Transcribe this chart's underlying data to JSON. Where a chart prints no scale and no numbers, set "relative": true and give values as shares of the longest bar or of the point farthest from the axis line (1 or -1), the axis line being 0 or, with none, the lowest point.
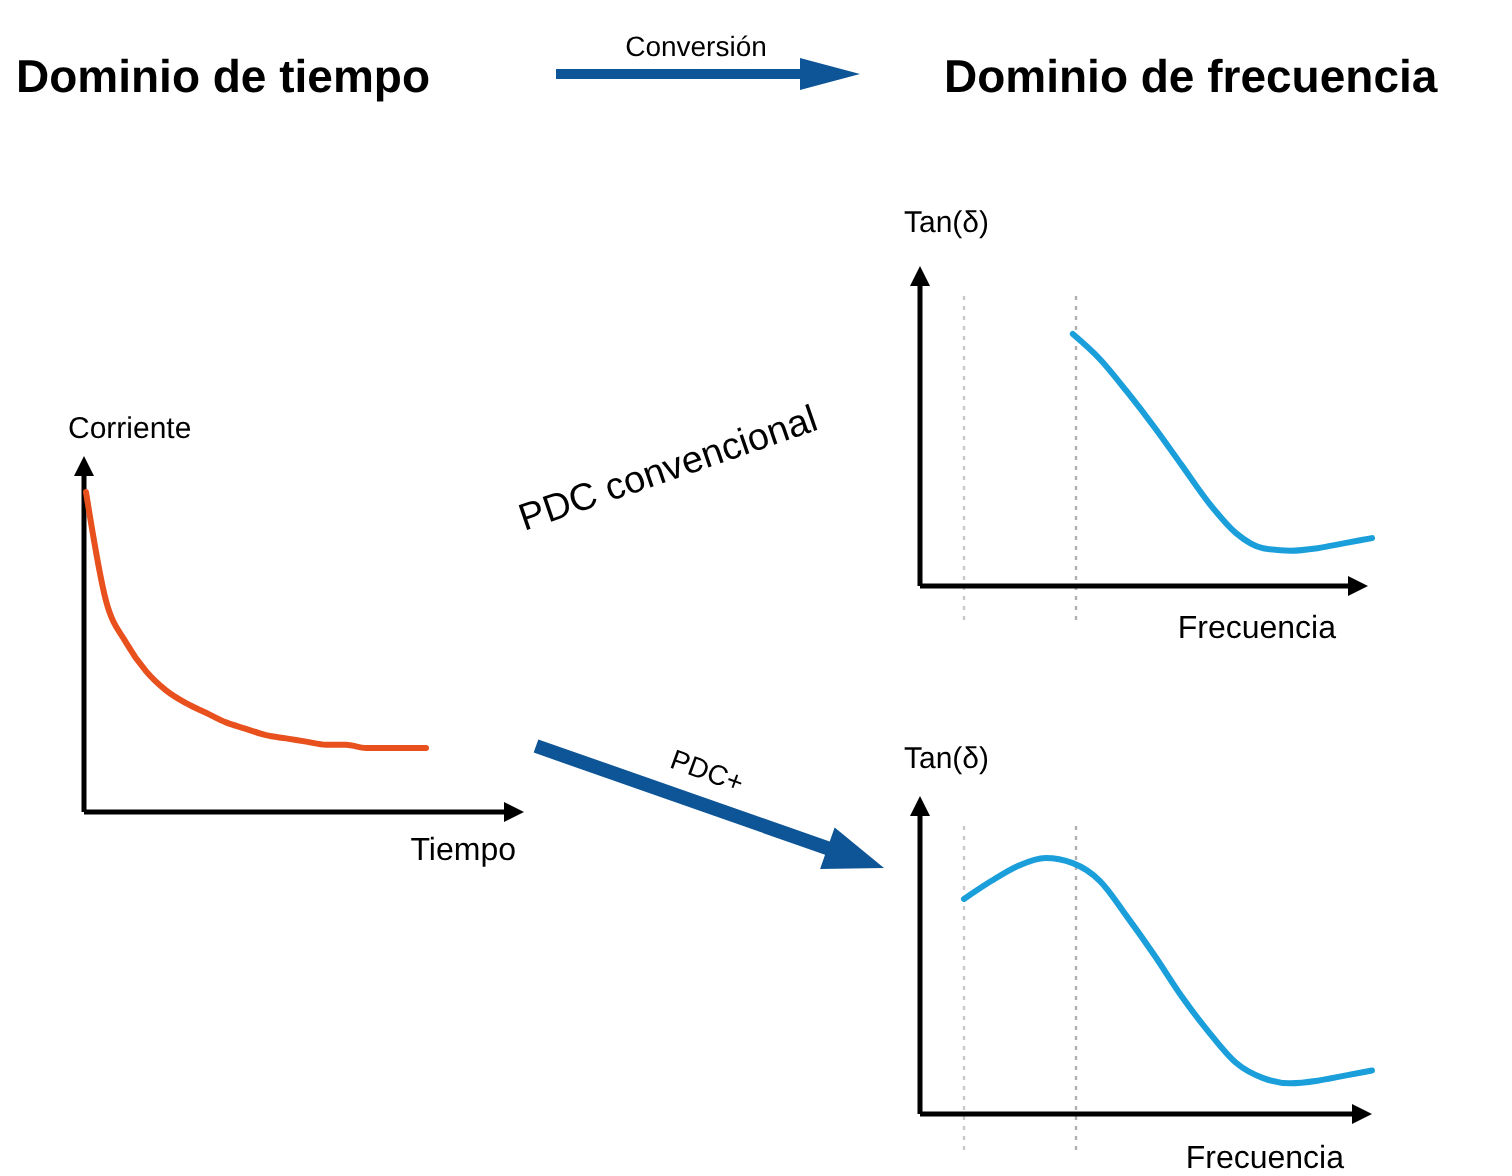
{
  "chart_data": [
    {
      "type": "line",
      "title": "Dominio de tiempo",
      "xlabel": "Tiempo",
      "ylabel": "Corriente",
      "relative": true,
      "categories": [
        null,
        null,
        null,
        null,
        null,
        null,
        null,
        null,
        null,
        null,
        null,
        null,
        null,
        null,
        null,
        null,
        null,
        null
      ],
      "series": [
        {
          "color": "#e8501e",
          "values": [
            1,
            0.66,
            0.53,
            0.44,
            0.38,
            0.34,
            0.31,
            0.28,
            0.26,
            0.24,
            0.23,
            0.22,
            0.21,
            0.21,
            0.2,
            0.2,
            0.2,
            0.2
          ]
        }
      ],
      "annotations": [
        "Conversión"
      ]
    },
    {
      "type": "line",
      "title": "Dominio de frecuencia",
      "xlabel": "Frecuencia",
      "ylabel": "Tan(δ)",
      "relative": true,
      "categories": [
        null,
        null,
        null,
        null,
        null,
        null,
        null,
        null,
        null,
        null,
        null,
        null,
        null,
        null,
        null,
        null
      ],
      "series": [
        {
          "color": "#1a9fdb",
          "values": [
            null,
            null,
            null,
            null,
            1,
            0.9,
            0.77,
            0.63,
            0.48,
            0.33,
            0.21,
            0.15,
            0.14,
            0.15,
            0.17,
            0.19
          ]
        }
      ],
      "annotations": [
        "PDC convencional"
      ]
    },
    {
      "type": "line",
      "xlabel": "Frecuencia",
      "ylabel": "Tan(δ)",
      "relative": true,
      "categories": [
        null,
        null,
        null,
        null,
        null,
        null,
        null,
        null,
        null,
        null,
        null,
        null,
        null,
        null,
        null,
        null
      ],
      "series": [
        {
          "color": "#1a9fdb",
          "values": [
            0.84,
            0.91,
            0.97,
            1,
            0.98,
            0.91,
            0.77,
            0.62,
            0.46,
            0.32,
            0.2,
            0.14,
            0.12,
            0.13,
            0.15,
            0.17
          ]
        }
      ],
      "annotations": [
        "PDC+"
      ]
    }
  ]
}
